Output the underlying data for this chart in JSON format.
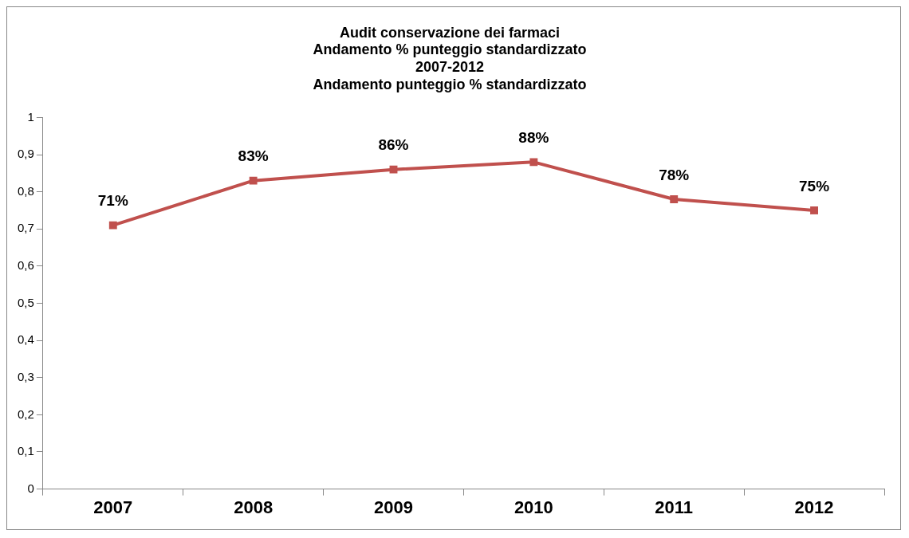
{
  "chart_data": {
    "type": "line",
    "title": "Audit conservazione dei farmaci\nAndamento % punteggio standardizzato\n2007-2012\nAndamento punteggio % standardizzato",
    "categories": [
      "2007",
      "2008",
      "2009",
      "2010",
      "2011",
      "2012"
    ],
    "series": [
      {
        "color": "#c0504d",
        "values": [
          0.71,
          0.83,
          0.86,
          0.88,
          0.78,
          0.75
        ],
        "value_labels": [
          "71%",
          "83%",
          "86%",
          "88%",
          "78%",
          "75%"
        ]
      }
    ],
    "ylim": [
      0,
      1
    ],
    "yticks": [
      0,
      {
        "value": 0.1,
        "label": "0,1"
      },
      {
        "value": 0.2,
        "label": "0,2"
      },
      {
        "value": 0.3,
        "label": "0,3"
      },
      {
        "value": 0.4,
        "label": "0,4"
      },
      {
        "value": 0.5,
        "label": "0,5"
      },
      {
        "value": 0.6,
        "label": "0,6"
      },
      {
        "value": 0.7,
        "label": "0,7"
      },
      {
        "value": 0.8,
        "label": "0,8"
      },
      {
        "value": 0.9,
        "label": "0,9"
      },
      1
    ],
    "marker": "square",
    "line_style": "solid"
  }
}
